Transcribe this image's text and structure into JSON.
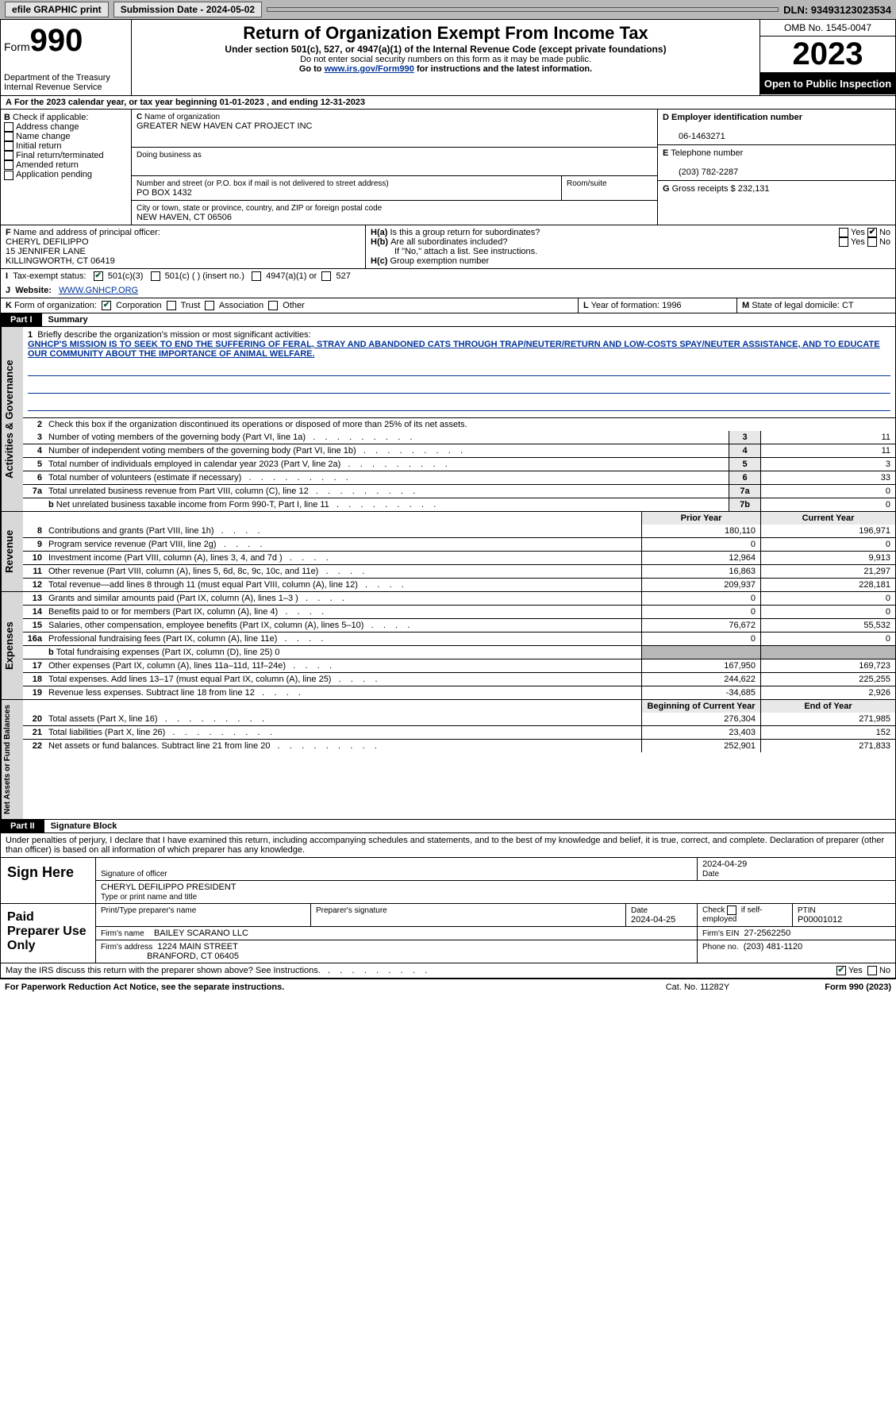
{
  "topbar": {
    "efile": "efile GRAPHIC print",
    "submission": "Submission Date - 2024-05-02",
    "dln": "DLN: 93493123023534"
  },
  "header": {
    "form_label": "Form",
    "form_num": "990",
    "dept": "Department of the Treasury\nInternal Revenue Service",
    "title": "Return of Organization Exempt From Income Tax",
    "subtitle": "Under section 501(c), 527, or 4947(a)(1) of the Internal Revenue Code (except private foundations)",
    "note1": "Do not enter social security numbers on this form as it may be made public.",
    "note2_pre": "Go to ",
    "note2_link": "www.irs.gov/Form990",
    "note2_post": " for instructions and the latest information.",
    "omb": "OMB No. 1545-0047",
    "year": "2023",
    "inspect": "Open to Public Inspection"
  },
  "A": {
    "line": "For the 2023 calendar year, or tax year beginning 01-01-2023    , and ending 12-31-2023"
  },
  "B": {
    "label": "Check if applicable:",
    "opts": [
      "Address change",
      "Name change",
      "Initial return",
      "Final return/terminated",
      "Amended return",
      "Application pending"
    ]
  },
  "C": {
    "name_label": "Name of organization",
    "name": "GREATER NEW HAVEN CAT PROJECT INC",
    "dba_label": "Doing business as",
    "dba": "",
    "street_label": "Number and street (or P.O. box if mail is not delivered to street address)",
    "street": "PO BOX 1432",
    "room_label": "Room/suite",
    "city_label": "City or town, state or province, country, and ZIP or foreign postal code",
    "city": "NEW HAVEN, CT  06506"
  },
  "D": {
    "label": "Employer identification number",
    "value": "06-1463271"
  },
  "E": {
    "label": "Telephone number",
    "value": "(203) 782-2287"
  },
  "G": {
    "label": "Gross receipts $",
    "value": "232,131"
  },
  "F": {
    "label": "Name and address of principal officer:",
    "line1": "CHERYL DEFILIPPO",
    "line2": "15 JENNIFER LANE",
    "line3": "KILLINGWORTH, CT  06419"
  },
  "H": {
    "a": "Is this a group return for subordinates?",
    "b": "Are all subordinates included?",
    "b_note": "If \"No,\" attach a list. See instructions.",
    "c": "Group exemption number"
  },
  "I": {
    "label": "Tax-exempt status:",
    "c3": "501(c)(3)",
    "c": "501(c) (  ) (insert no.)",
    "a": "4947(a)(1) or",
    "five27": "527"
  },
  "J": {
    "label": "Website:",
    "value": "WWW.GNHCP.ORG"
  },
  "K": {
    "label": "Form of organization:",
    "corp": "Corporation",
    "trust": "Trust",
    "assoc": "Association",
    "other": "Other"
  },
  "L": {
    "label": "Year of formation:",
    "value": "1996"
  },
  "M": {
    "label": "State of legal domicile:",
    "value": "CT"
  },
  "partI": {
    "banner": "Part I",
    "title": "Summary",
    "line1_label": "Briefly describe the organization's mission or most significant activities:",
    "mission": "GNHCP'S MISSION IS TO SEEK TO END THE SUFFERING OF FERAL, STRAY AND ABANDONED CATS THROUGH TRAP/NEUTER/RETURN AND LOW-COSTS SPAY/NEUTER ASSISTANCE, AND TO EDUCATE OUR COMMUNITY ABOUT THE IMPORTANCE OF ANIMAL WELFARE.",
    "line2": "Check this box      if the organization discontinued its operations or disposed of more than 25% of its net assets.",
    "gov_tab": "Activities & Governance",
    "rev_tab": "Revenue",
    "exp_tab": "Expenses",
    "net_tab": "Net Assets or Fund Balances",
    "lines_top": [
      {
        "n": "3",
        "d": "Number of voting members of the governing body (Part VI, line 1a)",
        "box": "3",
        "v": "11"
      },
      {
        "n": "4",
        "d": "Number of independent voting members of the governing body (Part VI, line 1b)",
        "box": "4",
        "v": "11"
      },
      {
        "n": "5",
        "d": "Total number of individuals employed in calendar year 2023 (Part V, line 2a)",
        "box": "5",
        "v": "3"
      },
      {
        "n": "6",
        "d": "Total number of volunteers (estimate if necessary)",
        "box": "6",
        "v": "33"
      },
      {
        "n": "7a",
        "d": "Total unrelated business revenue from Part VIII, column (C), line 12",
        "box": "7a",
        "v": "0"
      },
      {
        "n": "b",
        "sub": true,
        "d": "Net unrelated business taxable income from Form 990-T, Part I, line 11",
        "box": "7b",
        "v": "0"
      }
    ],
    "prior_year": "Prior Year",
    "current_year": "Current Year",
    "rev_lines": [
      {
        "n": "8",
        "d": "Contributions and grants (Part VIII, line 1h)",
        "p": "180,110",
        "c": "196,971"
      },
      {
        "n": "9",
        "d": "Program service revenue (Part VIII, line 2g)",
        "p": "0",
        "c": "0"
      },
      {
        "n": "10",
        "d": "Investment income (Part VIII, column (A), lines 3, 4, and 7d )",
        "p": "12,964",
        "c": "9,913"
      },
      {
        "n": "11",
        "d": "Other revenue (Part VIII, column (A), lines 5, 6d, 8c, 9c, 10c, and 11e)",
        "p": "16,863",
        "c": "21,297"
      },
      {
        "n": "12",
        "d": "Total revenue—add lines 8 through 11 (must equal Part VIII, column (A), line 12)",
        "p": "209,937",
        "c": "228,181"
      }
    ],
    "exp_lines": [
      {
        "n": "13",
        "d": "Grants and similar amounts paid (Part IX, column (A), lines 1–3 )",
        "p": "0",
        "c": "0"
      },
      {
        "n": "14",
        "d": "Benefits paid to or for members (Part IX, column (A), line 4)",
        "p": "0",
        "c": "0"
      },
      {
        "n": "15",
        "d": "Salaries, other compensation, employee benefits (Part IX, column (A), lines 5–10)",
        "p": "76,672",
        "c": "55,532"
      },
      {
        "n": "16a",
        "d": "Professional fundraising fees (Part IX, column (A), line 11e)",
        "p": "0",
        "c": "0"
      },
      {
        "n": "b",
        "sub": true,
        "d": "Total fundraising expenses (Part IX, column (D), line 25) 0",
        "grey": true
      },
      {
        "n": "17",
        "d": "Other expenses (Part IX, column (A), lines 11a–11d, 11f–24e)",
        "p": "167,950",
        "c": "169,723"
      },
      {
        "n": "18",
        "d": "Total expenses. Add lines 13–17 (must equal Part IX, column (A), line 25)",
        "p": "244,622",
        "c": "225,255"
      },
      {
        "n": "19",
        "d": "Revenue less expenses. Subtract line 18 from line 12",
        "p": "-34,685",
        "c": "2,926"
      }
    ],
    "net_header": {
      "p": "Beginning of Current Year",
      "c": "End of Year"
    },
    "net_lines": [
      {
        "n": "20",
        "d": "Total assets (Part X, line 16)",
        "p": "276,304",
        "c": "271,985"
      },
      {
        "n": "21",
        "d": "Total liabilities (Part X, line 26)",
        "p": "23,403",
        "c": "152"
      },
      {
        "n": "22",
        "d": "Net assets or fund balances. Subtract line 21 from line 20",
        "p": "252,901",
        "c": "271,833"
      }
    ]
  },
  "partII": {
    "banner": "Part II",
    "title": "Signature Block",
    "decl": "Under penalties of perjury, I declare that I have examined this return, including accompanying schedules and statements, and to the best of my knowledge and belief, it is true, correct, and complete. Declaration of preparer (other than officer) is based on all information of which preparer has any knowledge."
  },
  "sign": {
    "here": "Sign Here",
    "sig_officer": "Signature of officer",
    "date": "2024-04-29",
    "officer_name": "CHERYL DEFILIPPO PRESIDENT",
    "type_label": "Type or print name and title",
    "date_label": "Date"
  },
  "paid": {
    "label": "Paid Preparer Use Only",
    "prep_name_label": "Print/Type preparer's name",
    "prep_sig_label": "Preparer's signature",
    "date_label": "Date",
    "date": "2024-04-25",
    "check_label": "Check       if self-employed",
    "ptin_label": "PTIN",
    "ptin": "P00001012",
    "firm_name_label": "Firm's name",
    "firm_name": "BAILEY SCARANO LLC",
    "firm_ein_label": "Firm's EIN",
    "firm_ein": "27-2562250",
    "firm_addr_label": "Firm's address",
    "firm_addr1": "1224 MAIN STREET",
    "firm_addr2": "BRANFORD, CT  06405",
    "phone_label": "Phone no.",
    "phone": "(203) 481-1120"
  },
  "discuss": "May the IRS discuss this return with the preparer shown above? See Instructions.",
  "footer": {
    "left": "For Paperwork Reduction Act Notice, see the separate instructions.",
    "mid": "Cat. No. 11282Y",
    "right": "Form 990 (2023)"
  },
  "yes": "Yes",
  "no": "No"
}
